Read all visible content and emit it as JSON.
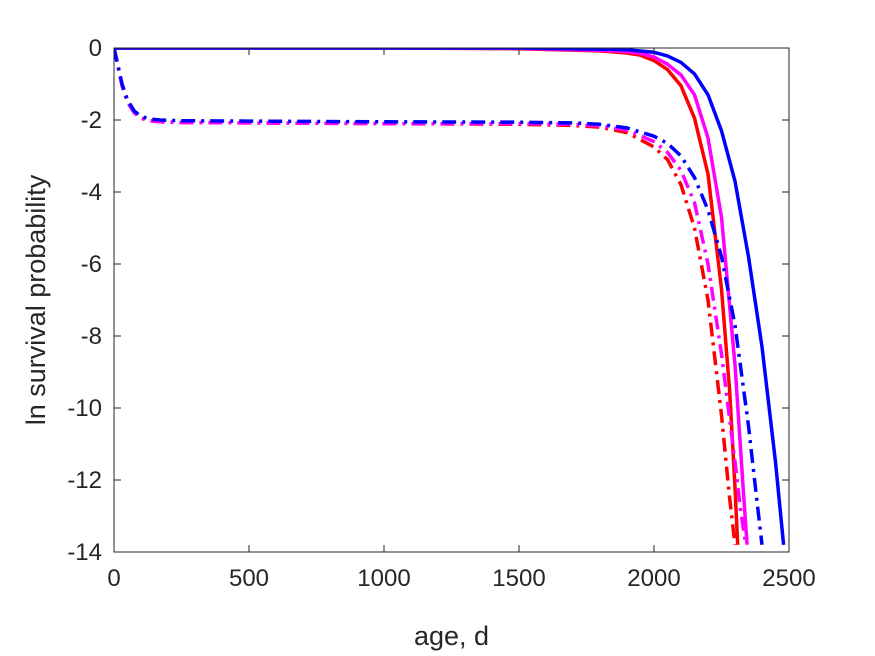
{
  "chart_data": {
    "type": "line",
    "title": "",
    "xlabel": "age, d",
    "ylabel": "ln survival probability",
    "xlim": [
      0,
      2500
    ],
    "ylim": [
      -14,
      0
    ],
    "xticks": [
      0,
      500,
      1000,
      1500,
      2000,
      2500
    ],
    "yticks": [
      0,
      -2,
      -4,
      -6,
      -8,
      -10,
      -12,
      -14
    ],
    "xtick_labels": [
      "0",
      "500",
      "1000",
      "1500",
      "2000",
      "2500"
    ],
    "ytick_labels": [
      "0",
      "-2",
      "-4",
      "-6",
      "-8",
      "-10",
      "-12",
      "-14"
    ],
    "grid": false,
    "legend": "none",
    "series": [
      {
        "color": "#ff0000",
        "style": "solid",
        "x": [
          0,
          500,
          1000,
          1500,
          1800,
          1900,
          1950,
          2000,
          2050,
          2100,
          2150,
          2200,
          2250,
          2280,
          2300,
          2310
        ],
        "y": [
          0,
          0,
          0,
          -0.02,
          -0.08,
          -0.14,
          -0.2,
          -0.35,
          -0.6,
          -1.05,
          -1.95,
          -3.5,
          -6.7,
          -9.5,
          -12.2,
          -13.8
        ]
      },
      {
        "color": "#ff00ff",
        "style": "solid",
        "x": [
          0,
          500,
          1000,
          1500,
          1800,
          1900,
          1950,
          2000,
          2050,
          2100,
          2150,
          2200,
          2250,
          2300,
          2330,
          2345
        ],
        "y": [
          0,
          0,
          0,
          -0.01,
          -0.06,
          -0.1,
          -0.15,
          -0.25,
          -0.45,
          -0.75,
          -1.3,
          -2.5,
          -4.7,
          -8.8,
          -12.2,
          -13.8
        ]
      },
      {
        "color": "#0000ff",
        "style": "solid",
        "x": [
          0,
          500,
          1000,
          1500,
          1800,
          1900,
          2000,
          2050,
          2100,
          2150,
          2200,
          2250,
          2300,
          2350,
          2400,
          2450,
          2480
        ],
        "y": [
          0,
          0,
          0,
          0,
          -0.03,
          -0.05,
          -0.12,
          -0.22,
          -0.4,
          -0.72,
          -1.3,
          -2.3,
          -3.7,
          -5.8,
          -8.3,
          -11.5,
          -13.8
        ]
      },
      {
        "color": "#ff0000",
        "style": "dashdot",
        "x": [
          0,
          15,
          30,
          50,
          75,
          100,
          130,
          170,
          250,
          500,
          1000,
          1500,
          1700,
          1800,
          1900,
          2000,
          2050,
          2100,
          2150,
          2200,
          2250,
          2280,
          2300
        ],
        "y": [
          0,
          -0.5,
          -1.05,
          -1.5,
          -1.8,
          -1.95,
          -2.02,
          -2.05,
          -2.07,
          -2.08,
          -2.1,
          -2.12,
          -2.15,
          -2.2,
          -2.35,
          -2.75,
          -3.1,
          -3.8,
          -5.0,
          -7.0,
          -10.2,
          -12.5,
          -13.8
        ]
      },
      {
        "color": "#ff00ff",
        "style": "dashdot",
        "x": [
          0,
          15,
          30,
          50,
          75,
          100,
          130,
          170,
          250,
          500,
          1000,
          1500,
          1700,
          1800,
          1900,
          2000,
          2050,
          2100,
          2150,
          2200,
          2250,
          2300,
          2320,
          2340
        ],
        "y": [
          0,
          -0.5,
          -1.05,
          -1.5,
          -1.8,
          -1.95,
          -2.02,
          -2.05,
          -2.07,
          -2.08,
          -2.1,
          -2.1,
          -2.12,
          -2.16,
          -2.28,
          -2.6,
          -2.9,
          -3.4,
          -4.3,
          -6.0,
          -8.5,
          -11.5,
          -12.8,
          -13.8
        ]
      },
      {
        "color": "#0000ff",
        "style": "dashdot",
        "x": [
          0,
          15,
          30,
          50,
          75,
          100,
          130,
          170,
          250,
          500,
          1000,
          1500,
          1700,
          1800,
          1900,
          2000,
          2050,
          2100,
          2150,
          2200,
          2250,
          2300,
          2350,
          2380,
          2400
        ],
        "y": [
          0,
          -0.5,
          -1.0,
          -1.45,
          -1.75,
          -1.9,
          -1.97,
          -2.0,
          -2.02,
          -2.03,
          -2.05,
          -2.06,
          -2.08,
          -2.12,
          -2.22,
          -2.45,
          -2.65,
          -3.0,
          -3.6,
          -4.5,
          -5.8,
          -7.7,
          -10.5,
          -12.5,
          -13.8
        ]
      }
    ]
  }
}
